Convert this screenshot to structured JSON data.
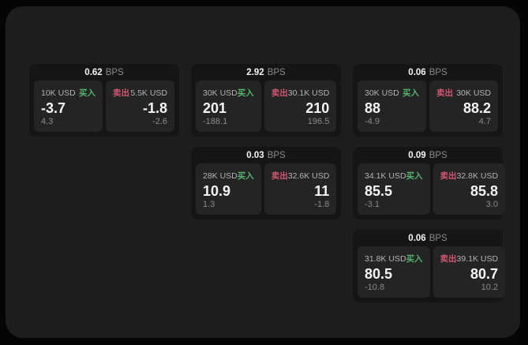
{
  "colors": {
    "buy_green": "#55b36e",
    "sell_red": "#d25670",
    "panel_background": "#242424",
    "card_background": "#151515",
    "page_background": "#1d1d1d"
  },
  "cards": [
    {
      "spread": "0.62",
      "unit": "BPS",
      "buy": {
        "amount": "10K USD",
        "side_label": "买入",
        "price": "-3.7",
        "sub_value": "4.3"
      },
      "sell": {
        "side_label": "卖出",
        "amount": "5.5K USD",
        "price": "-1.8",
        "sub_value": "-2.6"
      }
    },
    {
      "spread": "2.92",
      "unit": "BPS",
      "buy": {
        "amount": "30K USD",
        "side_label": "买入",
        "price": "201",
        "sub_value": "-188.1"
      },
      "sell": {
        "side_label": "卖出",
        "amount": "30.1K USD",
        "price": "210",
        "sub_value": "196.5"
      }
    },
    {
      "spread": "0.06",
      "unit": "BPS",
      "buy": {
        "amount": "30K USD",
        "side_label": "买入",
        "price": "88",
        "sub_value": "-4.9"
      },
      "sell": {
        "side_label": "卖出",
        "amount": "30K USD",
        "price": "88.2",
        "sub_value": "4.7"
      }
    },
    {
      "spread": "0.03",
      "unit": "BPS",
      "buy": {
        "amount": "28K USD",
        "side_label": "买入",
        "price": "10.9",
        "sub_value": "1.3"
      },
      "sell": {
        "side_label": "卖出",
        "amount": "32.6K USD",
        "price": "11",
        "sub_value": "-1.8"
      }
    },
    {
      "spread": "0.09",
      "unit": "BPS",
      "buy": {
        "amount": "34.1K USD",
        "side_label": "买入",
        "price": "85.5",
        "sub_value": "-3.1"
      },
      "sell": {
        "side_label": "卖出",
        "amount": "32.8K USD",
        "price": "85.8",
        "sub_value": "3.0"
      }
    },
    {
      "spread": "0.06",
      "unit": "BPS",
      "buy": {
        "amount": "31.8K USD",
        "side_label": "买入",
        "price": "80.5",
        "sub_value": "-10.8"
      },
      "sell": {
        "side_label": "卖出",
        "amount": "39.1K USD",
        "price": "80.7",
        "sub_value": "10.2"
      }
    }
  ]
}
